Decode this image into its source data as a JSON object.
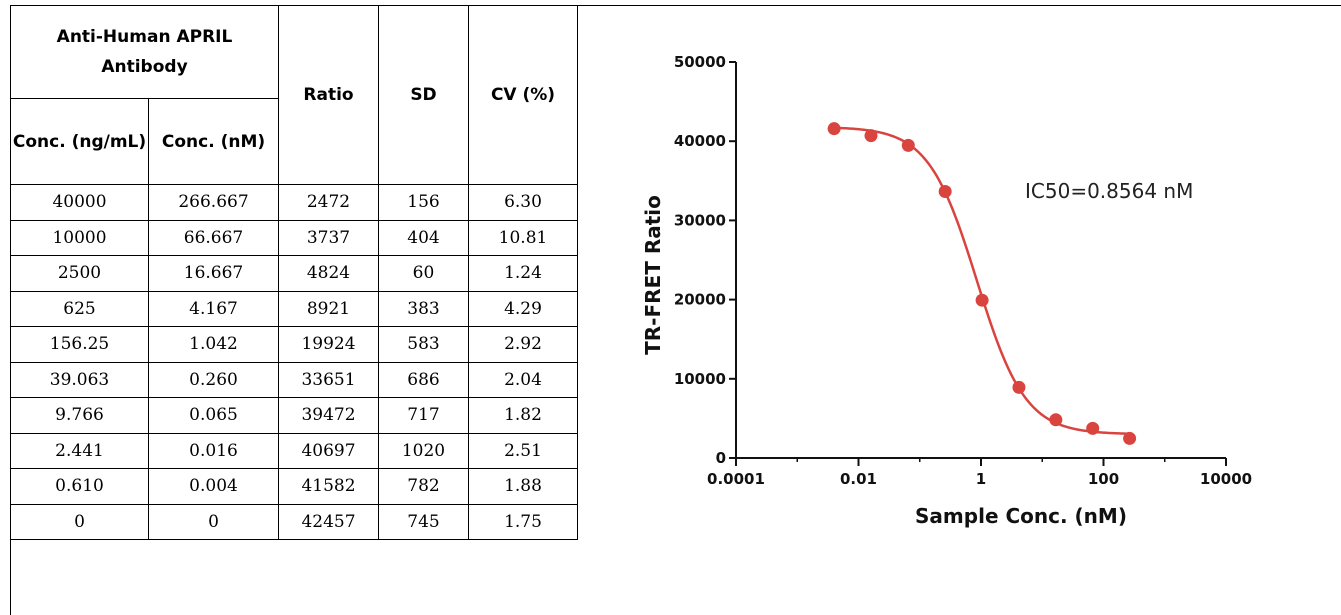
{
  "table": {
    "group_header": "Anti-Human APRIL Antibody",
    "headers": {
      "conc_ng": "Conc. (ng/mL)",
      "conc_nm": "Conc. (nM)",
      "ratio": "Ratio",
      "sd": "SD",
      "cv": "CV (%)"
    },
    "rows": [
      [
        "40000",
        "266.667",
        "2472",
        "156",
        "6.30"
      ],
      [
        "10000",
        "66.667",
        "3737",
        "404",
        "10.81"
      ],
      [
        "2500",
        "16.667",
        "4824",
        "60",
        "1.24"
      ],
      [
        "625",
        "4.167",
        "8921",
        "383",
        "4.29"
      ],
      [
        "156.25",
        "1.042",
        "19924",
        "583",
        "2.92"
      ],
      [
        "39.063",
        "0.260",
        "33651",
        "686",
        "2.04"
      ],
      [
        "9.766",
        "0.065",
        "39472",
        "717",
        "1.82"
      ],
      [
        "2.441",
        "0.016",
        "40697",
        "1020",
        "2.51"
      ],
      [
        "0.610",
        "0.004",
        "41582",
        "782",
        "1.88"
      ],
      [
        "0",
        "0",
        "42457",
        "745",
        "1.75"
      ]
    ]
  },
  "chart_data": {
    "type": "scatter",
    "xlabel": "Sample Conc. (nM)",
    "ylabel": "TR-FRET Ratio",
    "annotation": "IC50=0.8564 nM",
    "x_scale": "log",
    "xlim": [
      0.0001,
      10000
    ],
    "ylim": [
      0,
      50000
    ],
    "x_ticks": [
      "0.0001",
      "0.01",
      "1",
      "100",
      "10000"
    ],
    "y_ticks": [
      "0",
      "10000",
      "20000",
      "30000",
      "40000",
      "50000"
    ],
    "points_x": [
      0.004,
      0.016,
      0.065,
      0.26,
      1.042,
      4.167,
      16.667,
      66.667,
      266.667
    ],
    "points_y": [
      41582,
      40697,
      39472,
      33651,
      19924,
      8921,
      4824,
      3737,
      2472
    ],
    "fit": {
      "top": 41800,
      "bottom": 3000,
      "ic50": 0.8564,
      "hill": 1.1
    },
    "color": "#d9443f"
  }
}
